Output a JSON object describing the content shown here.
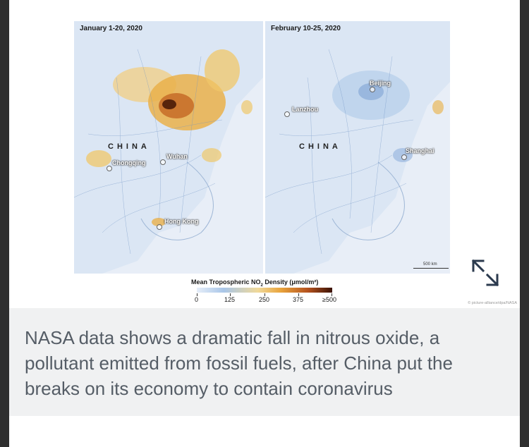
{
  "figure": {
    "left_map": {
      "title": "January 1-20, 2020",
      "country_label": "CHINA",
      "cities": [
        "Chongqing",
        "Wuhan",
        "Hong Kong"
      ]
    },
    "right_map": {
      "title": "February 10-25, 2020",
      "country_label": "CHINA",
      "cities": [
        "Beijing",
        "Lanzhou",
        "Shanghai"
      ],
      "scale_label": "500 km"
    },
    "legend": {
      "title_main": "Mean Tropospheric NO",
      "title_sub": "2",
      "title_rest": " Density (μmol/m²)",
      "ticks": [
        "0",
        "125",
        "250",
        "375",
        "≥500"
      ]
    },
    "credit": "© picture-alliance/dpa/NASA",
    "expand_icon": "expand-arrows-icon"
  },
  "caption": "NASA data shows a dramatic fall in nitrous oxide, a pollutant emitted from fossil fuels, after China put the breaks on its economy to contain coronavirus",
  "colors": {
    "land": "#dfe8f4",
    "low": "#a9c6e8",
    "mid": "#e9a43c",
    "high": "#3b1206",
    "caption_text": "#555d66",
    "caption_bg": "#f0f1f2"
  }
}
